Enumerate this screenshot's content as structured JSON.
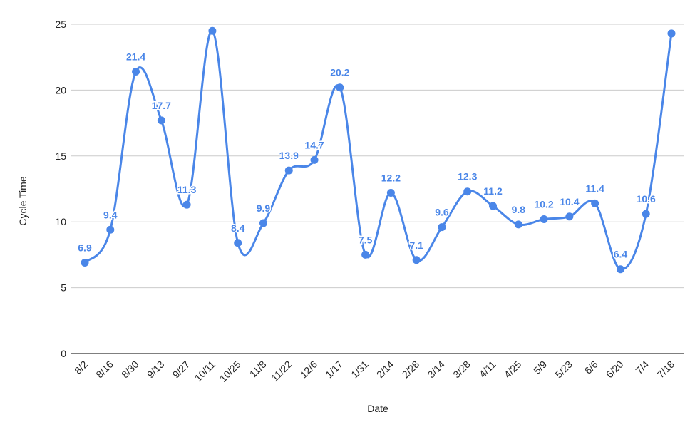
{
  "chart_data": {
    "type": "line",
    "xlabel": "Date",
    "ylabel": "Cycle Time",
    "categories": [
      "8/2",
      "8/16",
      "8/30",
      "9/13",
      "9/27",
      "10/11",
      "10/25",
      "11/8",
      "11/22",
      "12/6",
      "1/17",
      "1/31",
      "2/14",
      "2/28",
      "3/14",
      "3/28",
      "4/11",
      "4/25",
      "5/9",
      "5/23",
      "6/6",
      "6/20",
      "7/4",
      "7/18"
    ],
    "series": [
      {
        "values": [
          6.9,
          9.4,
          21.4,
          17.7,
          11.3,
          24.5,
          8.4,
          9.9,
          13.9,
          14.7,
          20.2,
          7.5,
          12.2,
          7.1,
          9.6,
          12.3,
          11.2,
          9.8,
          10.2,
          10.4,
          11.4,
          6.4,
          10.6,
          24.3
        ],
        "labels": [
          "6.9",
          "9.4",
          "21.4",
          "17.7",
          "11.3",
          "",
          "8.4",
          "9.9",
          "13.9",
          "14.7",
          "20.2",
          "7.5",
          "12.2",
          "7.1",
          "9.6",
          "12.3",
          "11.2",
          "9.8",
          "10.2",
          "10.4",
          "11.4",
          "6.4",
          "10.6",
          ""
        ],
        "color": "#4a86e8"
      }
    ],
    "ylim": [
      0,
      25
    ],
    "yticks": [
      0,
      5,
      10,
      15,
      20,
      25
    ],
    "grid": true,
    "curve": "smooth"
  }
}
